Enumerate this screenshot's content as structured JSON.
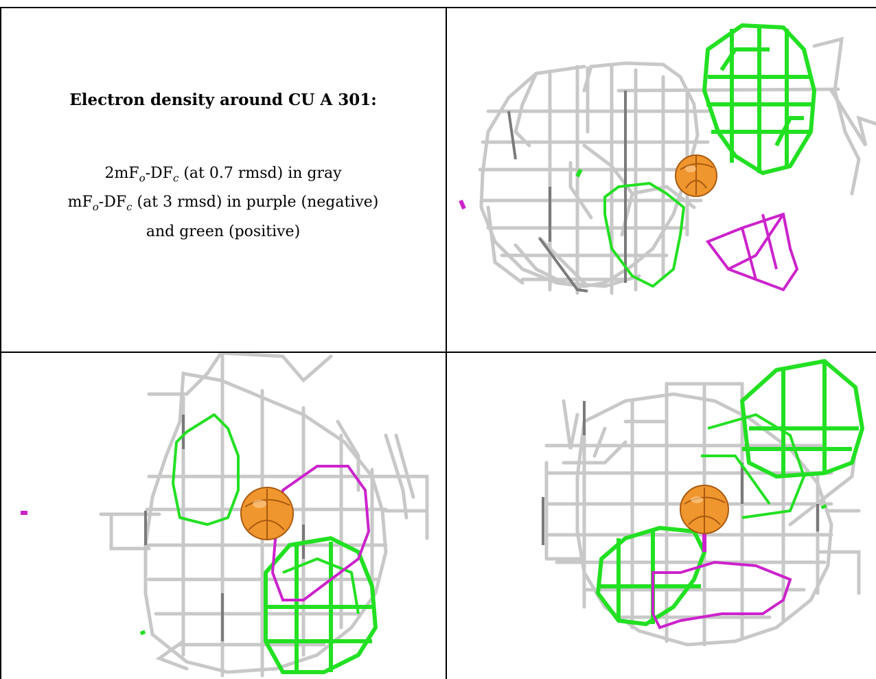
{
  "title": "Electron density around CU A 301:",
  "legend": {
    "line1": {
      "prefix": "2mF",
      "sub1": "o",
      "mid": "-DF",
      "sub2": "c",
      "suffix": " (at 0.7 rmsd) in gray"
    },
    "line2": {
      "prefix": "mF",
      "sub1": "o",
      "mid": "-DF",
      "sub2": "c",
      "suffix": " (at 3 rmsd) in purple (negative)"
    },
    "line3": "and green (positive)"
  },
  "colors": {
    "gray_mesh": "#c8c8c8",
    "gray_dark": "#7a7a7a",
    "green_mesh": "#22e022",
    "purple_mesh": "#cc22cc",
    "atom": "#f0962e",
    "atom_shade": "#a85a10"
  },
  "panels": [
    {
      "name": "view-top-right",
      "content": "copper-atom-density-view-1"
    },
    {
      "name": "view-bottom-left",
      "content": "copper-atom-density-view-2"
    },
    {
      "name": "view-bottom-right",
      "content": "copper-atom-density-view-3"
    }
  ]
}
